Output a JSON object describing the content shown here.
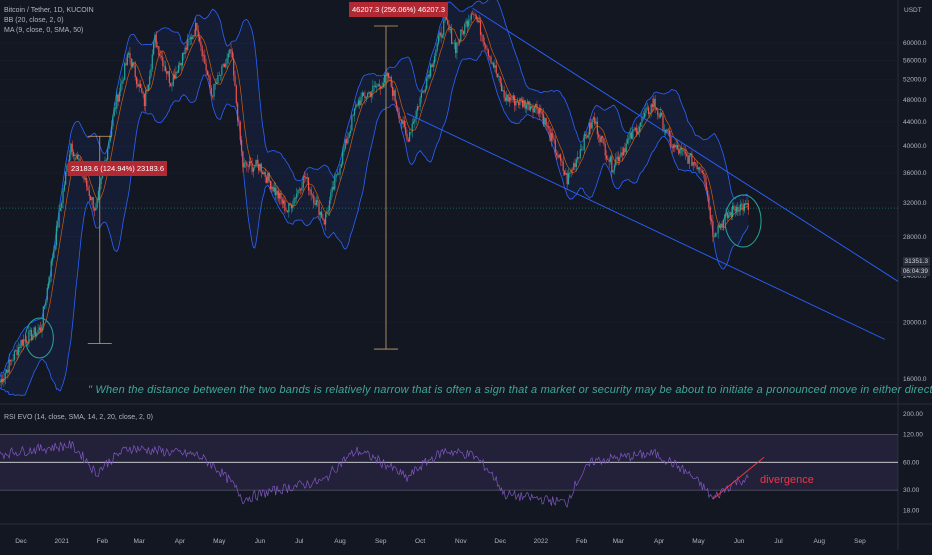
{
  "main_pane": {
    "legend": [
      "Bitcoin / Tether, 1D, KUCOIN",
      "BB (20, close, 2, 0)",
      "MA (9, close, 0, SMA, 50)"
    ],
    "currency_label": "USDT",
    "price_axis_labels": [
      "60000.0",
      "56000.0",
      "52000.0",
      "48000.0",
      "44000.0",
      "40000.0",
      "36000.0",
      "32000.0",
      "28000.0",
      "24000.0",
      "20000.0",
      "16000.0"
    ],
    "current_price_tag": "31351.3",
    "countdown_tag": "06:04:39",
    "annotation_quote": "\" When the distance between the two bands is relatively narrow that is often a sign that a market or security may be about to initiate a pronounced move in either direction.\"",
    "measure_labels": [
      "23183.6 (124.94%) 23183.6",
      "46207.3 (256.06%) 46207.3"
    ]
  },
  "rsi_pane": {
    "legend": "RSI EVO (14, close, SMA, 14, 2, 20, close, 2, 0)",
    "axis_labels": [
      "200.00",
      "120.00",
      "60.00",
      "30.00",
      "18.00"
    ],
    "divergence_label": "divergence"
  },
  "time_axis_labels": [
    "Dec",
    "2021",
    "Feb",
    "Mar",
    "Apr",
    "May",
    "Jun",
    "Jul",
    "Aug",
    "Sep",
    "Oct",
    "Nov",
    "Dec",
    "2022",
    "Feb",
    "Mar",
    "Apr",
    "May",
    "Jun",
    "Jul",
    "Aug",
    "Sep"
  ],
  "colors": {
    "background": "#131722",
    "up_candle": "#26a69a",
    "down_candle": "#ef5350",
    "bollinger": "#2962ff",
    "moving_average": "#ff6d00",
    "rsi_line": "#7e57c2",
    "annotation_text": "#3fa89c",
    "divergence": "#f23645"
  },
  "chart_data": {
    "type": "candlestick",
    "title": "Bitcoin / Tether, 1D, KUCOIN",
    "y_scale": "log",
    "ylim": [
      14500,
      70000
    ],
    "x_range": [
      "2020-11-15",
      "2022-09-30"
    ],
    "price_path": [
      {
        "date": "2020-11-15",
        "price": 15800
      },
      {
        "date": "2020-12-01",
        "price": 18500
      },
      {
        "date": "2020-12-16",
        "price": 19500
      },
      {
        "date": "2021-01-08",
        "price": 40500
      },
      {
        "date": "2021-01-27",
        "price": 31000
      },
      {
        "date": "2021-02-10",
        "price": 46000
      },
      {
        "date": "2021-02-21",
        "price": 57500
      },
      {
        "date": "2021-03-05",
        "price": 47500
      },
      {
        "date": "2021-03-13",
        "price": 61000
      },
      {
        "date": "2021-03-25",
        "price": 51500
      },
      {
        "date": "2021-04-14",
        "price": 64500
      },
      {
        "date": "2021-04-25",
        "price": 49000
      },
      {
        "date": "2021-05-10",
        "price": 58000
      },
      {
        "date": "2021-05-19",
        "price": 37000
      },
      {
        "date": "2021-06-01",
        "price": 37000
      },
      {
        "date": "2021-06-22",
        "price": 31000
      },
      {
        "date": "2021-07-05",
        "price": 35500
      },
      {
        "date": "2021-07-20",
        "price": 29800
      },
      {
        "date": "2021-08-14",
        "price": 47500
      },
      {
        "date": "2021-09-07",
        "price": 52500
      },
      {
        "date": "2021-09-21",
        "price": 41000
      },
      {
        "date": "2021-10-20",
        "price": 65500
      },
      {
        "date": "2021-10-28",
        "price": 59000
      },
      {
        "date": "2021-11-10",
        "price": 68800
      },
      {
        "date": "2021-11-26",
        "price": 55000
      },
      {
        "date": "2021-12-04",
        "price": 48500
      },
      {
        "date": "2021-12-31",
        "price": 46500
      },
      {
        "date": "2022-01-21",
        "price": 35000
      },
      {
        "date": "2022-02-10",
        "price": 44500
      },
      {
        "date": "2022-02-24",
        "price": 37000
      },
      {
        "date": "2022-03-28",
        "price": 47500
      },
      {
        "date": "2022-04-11",
        "price": 40000
      },
      {
        "date": "2022-05-05",
        "price": 36500
      },
      {
        "date": "2022-05-12",
        "price": 28500
      },
      {
        "date": "2022-05-31",
        "price": 31700
      },
      {
        "date": "2022-06-08",
        "price": 31351
      }
    ],
    "trendlines": [
      {
        "name": "upper-channel",
        "points": [
          {
            "date": "2021-11-10",
            "price": 68800
          },
          {
            "date": "2022-09-30",
            "price": 23500
          }
        ]
      },
      {
        "name": "lower-channel",
        "points": [
          {
            "date": "2021-09-21",
            "price": 45500
          },
          {
            "date": "2022-09-20",
            "price": 18700
          }
        ]
      }
    ],
    "measures": [
      {
        "date": "2021-01-30",
        "from": 18400,
        "to": 41600,
        "label": "23183.6 (124.94%) 23183.6"
      },
      {
        "date": "2021-09-05",
        "from": 18000,
        "to": 64200,
        "label": "46207.3 (256.06%) 46207.3"
      }
    ],
    "highlight_circles": [
      {
        "date": "2020-12-15",
        "price": 18800
      },
      {
        "date": "2022-06-04",
        "price": 29800
      }
    ],
    "rsi": {
      "ylim": [
        15,
        220
      ],
      "levels": [
        120,
        60,
        30
      ],
      "path": [
        {
          "date": "2020-11-15",
          "value": 74
        },
        {
          "date": "2021-01-08",
          "value": 92
        },
        {
          "date": "2021-01-27",
          "value": 45
        },
        {
          "date": "2021-02-21",
          "value": 86
        },
        {
          "date": "2021-04-14",
          "value": 72
        },
        {
          "date": "2021-05-19",
          "value": 24
        },
        {
          "date": "2021-06-22",
          "value": 32
        },
        {
          "date": "2021-07-20",
          "value": 38
        },
        {
          "date": "2021-08-14",
          "value": 80
        },
        {
          "date": "2021-09-21",
          "value": 40
        },
        {
          "date": "2021-10-20",
          "value": 80
        },
        {
          "date": "2021-11-10",
          "value": 72
        },
        {
          "date": "2021-12-04",
          "value": 27
        },
        {
          "date": "2022-01-21",
          "value": 22
        },
        {
          "date": "2022-02-10",
          "value": 62
        },
        {
          "date": "2022-03-28",
          "value": 75
        },
        {
          "date": "2022-05-12",
          "value": 24
        },
        {
          "date": "2022-05-31",
          "value": 38
        },
        {
          "date": "2022-06-08",
          "value": 40
        }
      ],
      "divergence_line": [
        {
          "date": "2022-05-12",
          "value": 24
        },
        {
          "date": "2022-06-20",
          "value": 68
        }
      ]
    }
  }
}
